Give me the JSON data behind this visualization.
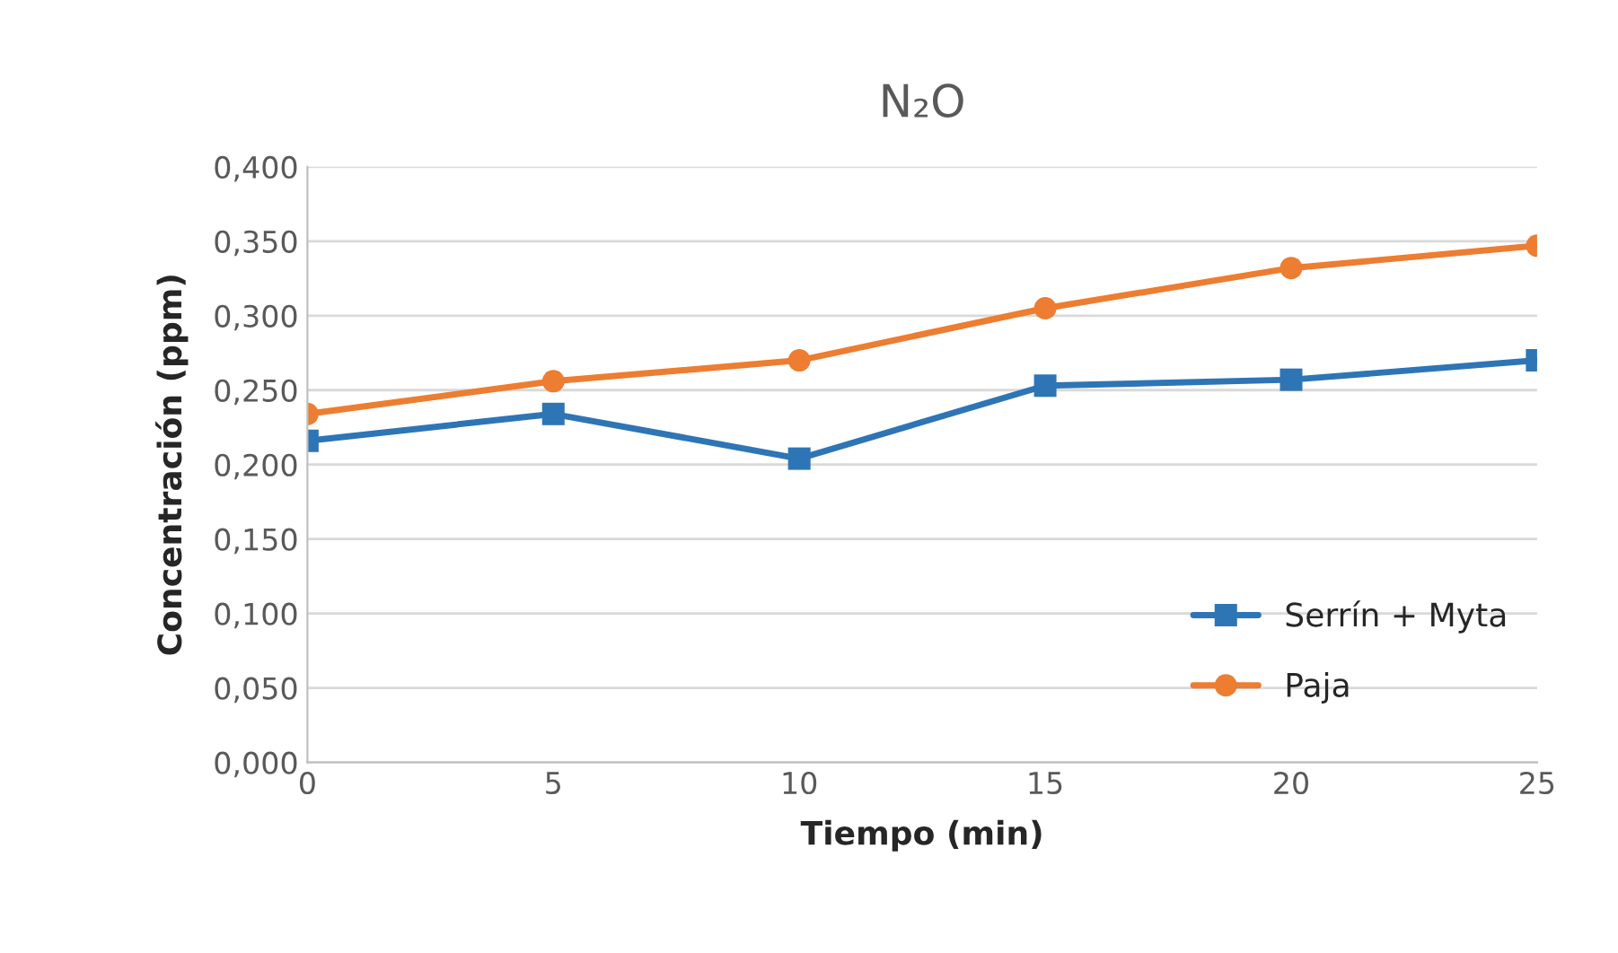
{
  "chart_data": {
    "type": "line",
    "title": "N₂O",
    "xlabel": "Tiempo (min)",
    "ylabel": "Concentración (ppm)",
    "x": [
      0,
      5,
      10,
      15,
      20,
      25
    ],
    "series": [
      {
        "name": "Serrín + Myta",
        "color": "#2e75b6",
        "marker": "square",
        "values": [
          0.216,
          0.234,
          0.204,
          0.253,
          0.257,
          0.27
        ]
      },
      {
        "name": "Paja",
        "color": "#ed7d31",
        "marker": "circle",
        "values": [
          0.234,
          0.256,
          0.27,
          0.305,
          0.332,
          0.347
        ]
      }
    ],
    "xlim": [
      0,
      25
    ],
    "xticks": [
      0,
      5,
      10,
      15,
      20,
      25
    ],
    "ylim": [
      0,
      0.4
    ],
    "yticks": [
      {
        "value": 0,
        "label": "0,000"
      },
      {
        "value": 0.05,
        "label": "0,050"
      },
      {
        "value": 0.1,
        "label": "0,100"
      },
      {
        "value": 0.15,
        "label": "0,150"
      },
      {
        "value": 0.2,
        "label": "0,200"
      },
      {
        "value": 0.25,
        "label": "0,250"
      },
      {
        "value": 0.3,
        "label": "0,300"
      },
      {
        "value": 0.35,
        "label": "0,350"
      },
      {
        "value": 0.4,
        "label": "0,400"
      }
    ],
    "grid": "y",
    "legend": "bottom right",
    "line_style": "solid"
  }
}
